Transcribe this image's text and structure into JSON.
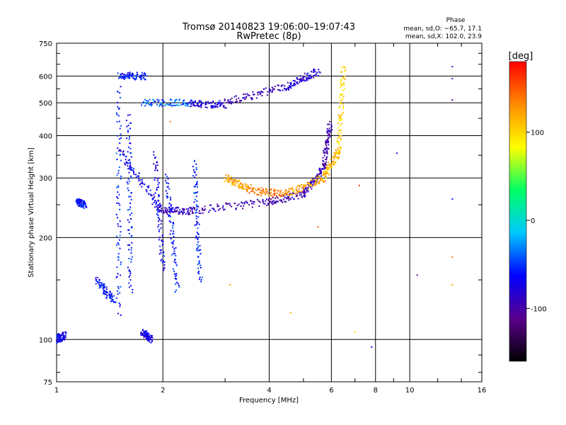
{
  "chart_data": {
    "type": "scatter",
    "title": "Tromsø 20140823 19:06:00–19:07:43",
    "subtitle": "RwPretec (8p)",
    "xlabel": "Frequency [MHz]",
    "ylabel": "Stationary phase Virtual Height [km]",
    "x_scale": "log",
    "y_scale": "log",
    "xlim": [
      1,
      16
    ],
    "ylim": [
      75,
      750
    ],
    "x_ticks": [
      1,
      2,
      4,
      6,
      8,
      10,
      16
    ],
    "y_ticks": [
      75,
      100,
      200,
      300,
      400,
      500,
      600,
      750
    ],
    "grid": true,
    "stats": {
      "heading": "Phase",
      "line_o": "mean, sd,O: −65.7, 17.1",
      "line_x": "mean, sd,X: 102.0, 23.9"
    },
    "colorbar": {
      "label": "[deg]",
      "ticks": [
        100,
        0,
        -100
      ],
      "range": [
        -160,
        180
      ],
      "colors": [
        "#000000",
        "#5a008c",
        "#0000ff",
        "#00c8ff",
        "#00ff64",
        "#ffff00",
        "#ff8c00",
        "#ff0000"
      ]
    },
    "traces": [
      {
        "from": [
          1.5,
          600
        ],
        "to": [
          1.78,
          600
        ],
        "phase": -60
      },
      {
        "from": [
          1.5,
          550
        ],
        "to": [
          1.5,
          120
        ],
        "phase": -55
      },
      {
        "from": [
          1.6,
          460
        ],
        "to": [
          1.62,
          140
        ],
        "phase": -60
      },
      {
        "from": [
          1.52,
          360
        ],
        "to": [
          1.95,
          245
        ],
        "phase": -70
      },
      {
        "from": [
          1.95,
          240
        ],
        "to": [
          2.4,
          240
        ],
        "phase": -90
      },
      {
        "from": [
          2.4,
          240
        ],
        "to": [
          4.0,
          255
        ],
        "phase": -95
      },
      {
        "from": [
          4.0,
          255
        ],
        "to": [
          5.0,
          270
        ],
        "phase": -100
      },
      {
        "from": [
          5.0,
          270
        ],
        "to": [
          5.7,
          320
        ],
        "phase": -90
      },
      {
        "from": [
          5.7,
          320
        ],
        "to": [
          5.95,
          430
        ],
        "phase": -100
      },
      {
        "from": [
          1.9,
          350
        ],
        "to": [
          2.0,
          160
        ],
        "phase": -70
      },
      {
        "from": [
          2.05,
          300
        ],
        "to": [
          2.2,
          140
        ],
        "phase": -60
      },
      {
        "from": [
          2.45,
          330
        ],
        "to": [
          2.55,
          150
        ],
        "phase": -55
      },
      {
        "from": [
          1.75,
          500
        ],
        "to": [
          2.4,
          500
        ],
        "phase": -40
      },
      {
        "from": [
          2.4,
          495
        ],
        "to": [
          3.0,
          495
        ],
        "phase": -80
      },
      {
        "from": [
          3.0,
          500
        ],
        "to": [
          4.5,
          560
        ],
        "phase": -95
      },
      {
        "from": [
          4.5,
          560
        ],
        "to": [
          5.5,
          620
        ],
        "phase": -80
      },
      {
        "from": [
          3.0,
          300
        ],
        "to": [
          3.5,
          280
        ],
        "phase": 120
      },
      {
        "from": [
          3.5,
          275
        ],
        "to": [
          4.5,
          270
        ],
        "phase": 140
      },
      {
        "from": [
          4.5,
          270
        ],
        "to": [
          5.7,
          300
        ],
        "phase": 120
      },
      {
        "from": [
          5.7,
          300
        ],
        "to": [
          6.3,
          360
        ],
        "phase": 110
      },
      {
        "from": [
          6.3,
          360
        ],
        "to": [
          6.5,
          640
        ],
        "phase": 100
      },
      {
        "from": [
          1.3,
          150
        ],
        "to": [
          1.45,
          130
        ],
        "phase": -60
      },
      {
        "from": [
          1.15,
          255
        ],
        "to": [
          1.2,
          250
        ],
        "phase": -60
      },
      {
        "from": [
          1.75,
          105
        ],
        "to": [
          1.85,
          100
        ],
        "phase": -75
      },
      {
        "from": [
          1.0,
          100
        ],
        "to": [
          1.05,
          103
        ],
        "phase": -70
      }
    ],
    "isolated_points": [
      {
        "x": 13.2,
        "y": 640,
        "phase": -90
      },
      {
        "x": 13.2,
        "y": 590,
        "phase": -90
      },
      {
        "x": 13.2,
        "y": 510,
        "phase": -110
      },
      {
        "x": 13.2,
        "y": 260,
        "phase": -60
      },
      {
        "x": 13.2,
        "y": 175,
        "phase": 140
      },
      {
        "x": 13.2,
        "y": 145,
        "phase": 120
      },
      {
        "x": 10.5,
        "y": 155,
        "phase": -110
      },
      {
        "x": 9.2,
        "y": 355,
        "phase": -80
      },
      {
        "x": 7.8,
        "y": 95,
        "phase": -60
      },
      {
        "x": 7.2,
        "y": 285,
        "phase": 160
      },
      {
        "x": 7.0,
        "y": 105,
        "phase": 100
      },
      {
        "x": 3.1,
        "y": 145,
        "phase": 120
      },
      {
        "x": 4.6,
        "y": 120,
        "phase": 120
      },
      {
        "x": 5.5,
        "y": 215,
        "phase": 150
      },
      {
        "x": 2.1,
        "y": 440,
        "phase": 140
      }
    ]
  }
}
